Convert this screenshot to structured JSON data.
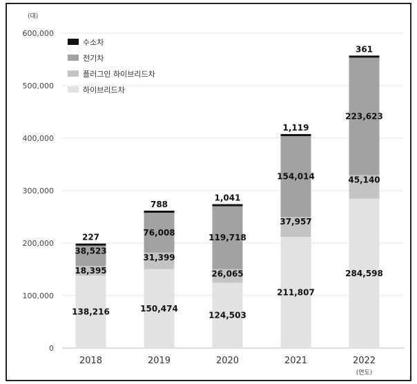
{
  "chart_data": {
    "type": "bar",
    "stacked": true,
    "categories": [
      "2018",
      "2019",
      "2020",
      "2021",
      "2022"
    ],
    "series": [
      {
        "name": "하이브리드차",
        "values": [
          138216,
          150474,
          124503,
          211807,
          284598
        ],
        "color": "#e2e2e2"
      },
      {
        "name": "플러그인 하이브리드차",
        "values": [
          18395,
          31399,
          26065,
          37957,
          45140
        ],
        "color": "#c4c4c4"
      },
      {
        "name": "전기차",
        "values": [
          38523,
          76008,
          119718,
          154014,
          223623
        ],
        "color": "#a2a2a2"
      },
      {
        "name": "수소차",
        "values": [
          227,
          788,
          1041,
          1119,
          361
        ],
        "color": "#111111"
      }
    ],
    "y_unit": "(대)",
    "x_unit": "(연도)",
    "ylim": [
      0,
      600000
    ],
    "yticks": [
      0,
      100000,
      200000,
      300000,
      400000,
      500000,
      600000
    ],
    "ytick_labels": [
      "0",
      "100,000",
      "200,000",
      "300,000",
      "400,000",
      "500,000",
      "600,000"
    ],
    "data_labels": [
      [
        "138,216",
        "150,474",
        "124,503",
        "211,807",
        "284,598"
      ],
      [
        "18,395",
        "31,399",
        "26,065",
        "37,957",
        "45,140"
      ],
      [
        "38,523",
        "76,008",
        "119,718",
        "154,014",
        "223,623"
      ],
      [
        "227",
        "788",
        "1,041",
        "1,119",
        "361"
      ]
    ],
    "legend_position": "top-left",
    "legend_order": [
      3,
      2,
      1,
      0
    ],
    "grid": true
  }
}
